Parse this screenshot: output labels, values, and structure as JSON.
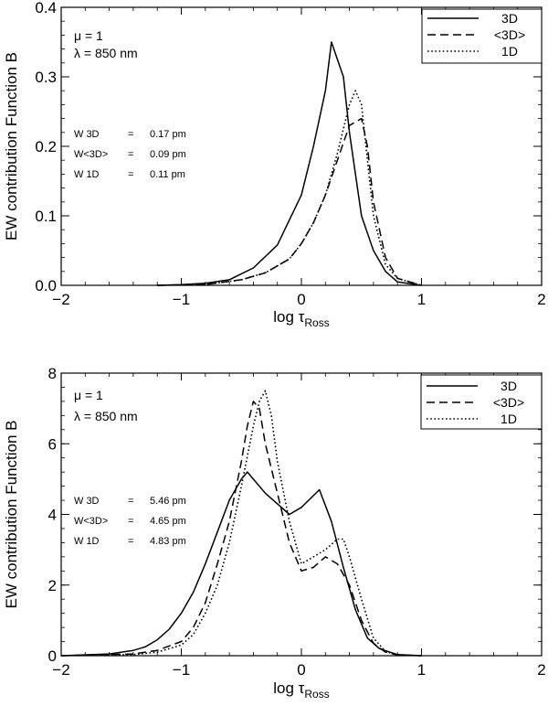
{
  "chart_data": [
    {
      "type": "line",
      "xlabel": "log τ",
      "xlabel_sub": "Ross",
      "ylabel": "EW contribution Function B",
      "xlim": [
        -2,
        2
      ],
      "ylim": [
        0,
        0.4
      ],
      "xticks": [
        -2,
        -1,
        0,
        1,
        2
      ],
      "xtick_labels": [
        "−2",
        "−1",
        "0",
        "1",
        "2"
      ],
      "yticks": [
        0.0,
        0.1,
        0.2,
        0.3,
        0.4
      ],
      "ytick_labels": [
        "0.0",
        "0.1",
        "0.2",
        "0.3",
        "0.4"
      ],
      "annotations": [
        "μ = 1",
        "λ = 850 nm"
      ],
      "ew_rows": [
        {
          "label": "W 3D",
          "sep": "=",
          "value": "0.17 pm"
        },
        {
          "label": "W<3D>",
          "sep": "=",
          "value": "0.09 pm"
        },
        {
          "label": "W 1D",
          "sep": "=",
          "value": "0.11 pm"
        }
      ],
      "legend": [
        "3D",
        "<3D>",
        "1D"
      ],
      "series": [
        {
          "name": "3D",
          "style": "solid",
          "x": [
            -1.2,
            -1.0,
            -0.8,
            -0.6,
            -0.4,
            -0.2,
            0.0,
            0.1,
            0.2,
            0.25,
            0.35,
            0.4,
            0.5,
            0.6,
            0.7,
            0.8,
            1.0
          ],
          "y": [
            0.0,
            0.001,
            0.003,
            0.008,
            0.025,
            0.058,
            0.13,
            0.2,
            0.28,
            0.35,
            0.3,
            0.22,
            0.1,
            0.05,
            0.02,
            0.005,
            0.0
          ]
        },
        {
          "name": "<3D>",
          "style": "dashed",
          "x": [
            -1.2,
            -0.8,
            -0.5,
            -0.3,
            -0.1,
            0.0,
            0.1,
            0.2,
            0.3,
            0.4,
            0.5,
            0.55,
            0.6,
            0.7,
            0.8,
            1.0
          ],
          "y": [
            0.0,
            0.001,
            0.008,
            0.018,
            0.038,
            0.06,
            0.09,
            0.13,
            0.18,
            0.23,
            0.24,
            0.2,
            0.12,
            0.04,
            0.01,
            0.0
          ]
        },
        {
          "name": "1D",
          "style": "dotted",
          "x": [
            -1.2,
            -0.8,
            -0.5,
            -0.3,
            -0.1,
            0.0,
            0.1,
            0.2,
            0.3,
            0.4,
            0.45,
            0.5,
            0.55,
            0.6,
            0.7,
            0.8,
            1.0
          ],
          "y": [
            0.0,
            0.001,
            0.008,
            0.018,
            0.038,
            0.06,
            0.09,
            0.13,
            0.19,
            0.26,
            0.28,
            0.26,
            0.18,
            0.1,
            0.03,
            0.01,
            0.0
          ]
        }
      ]
    },
    {
      "type": "line",
      "xlabel": "log τ",
      "xlabel_sub": "Ross",
      "ylabel": "EW contribution Function B",
      "xlim": [
        -2,
        2
      ],
      "ylim": [
        0,
        8
      ],
      "xticks": [
        -2,
        -1,
        0,
        1,
        2
      ],
      "xtick_labels": [
        "−2",
        "−1",
        "0",
        "1",
        "2"
      ],
      "yticks": [
        0,
        2,
        4,
        6,
        8
      ],
      "ytick_labels": [
        "0",
        "2",
        "4",
        "6",
        "8"
      ],
      "annotations": [
        "μ = 1",
        "λ = 850 nm"
      ],
      "ew_rows": [
        {
          "label": "W 3D",
          "sep": "=",
          "value": "5.46 pm"
        },
        {
          "label": "W<3D>",
          "sep": "=",
          "value": "4.65 pm"
        },
        {
          "label": "W 1D",
          "sep": "=",
          "value": "4.83 pm"
        }
      ],
      "legend": [
        "3D",
        "<3D>",
        "1D"
      ],
      "series": [
        {
          "name": "3D",
          "style": "solid",
          "x": [
            -2.0,
            -1.6,
            -1.4,
            -1.3,
            -1.2,
            -1.1,
            -1.0,
            -0.9,
            -0.8,
            -0.7,
            -0.6,
            -0.5,
            -0.45,
            -0.4,
            -0.3,
            -0.2,
            -0.1,
            0.0,
            0.15,
            0.25,
            0.35,
            0.45,
            0.55,
            0.65,
            0.8,
            1.0
          ],
          "y": [
            0.0,
            0.05,
            0.15,
            0.25,
            0.45,
            0.75,
            1.2,
            1.8,
            2.6,
            3.5,
            4.4,
            5.0,
            5.2,
            5.0,
            4.6,
            4.3,
            4.0,
            4.2,
            4.7,
            3.8,
            2.5,
            1.3,
            0.5,
            0.2,
            0.03,
            0.0
          ]
        },
        {
          "name": "<3D>",
          "style": "dashed",
          "x": [
            -2.0,
            -1.4,
            -1.2,
            -1.0,
            -0.9,
            -0.8,
            -0.7,
            -0.6,
            -0.5,
            -0.45,
            -0.4,
            -0.35,
            -0.3,
            -0.2,
            -0.1,
            0.0,
            0.1,
            0.2,
            0.3,
            0.4,
            0.5,
            0.6,
            0.7,
            0.8,
            1.0
          ],
          "y": [
            0.0,
            0.05,
            0.15,
            0.4,
            0.8,
            1.5,
            2.6,
            3.8,
            5.5,
            6.5,
            7.2,
            7.0,
            6.0,
            4.6,
            3.2,
            2.4,
            2.5,
            2.8,
            2.6,
            2.0,
            1.0,
            0.35,
            0.1,
            0.02,
            0.0
          ]
        },
        {
          "name": "1D",
          "style": "dotted",
          "x": [
            -2.0,
            -1.4,
            -1.2,
            -1.0,
            -0.9,
            -0.8,
            -0.7,
            -0.6,
            -0.5,
            -0.4,
            -0.35,
            -0.3,
            -0.25,
            -0.2,
            -0.1,
            0.0,
            0.1,
            0.2,
            0.3,
            0.35,
            0.4,
            0.5,
            0.6,
            0.7,
            0.8,
            1.0
          ],
          "y": [
            0.0,
            0.03,
            0.1,
            0.3,
            0.6,
            1.2,
            2.0,
            3.2,
            4.8,
            6.5,
            7.2,
            7.5,
            6.8,
            5.5,
            3.8,
            2.6,
            2.8,
            3.0,
            3.3,
            3.3,
            2.8,
            1.6,
            0.5,
            0.12,
            0.02,
            0.0
          ]
        }
      ]
    }
  ]
}
